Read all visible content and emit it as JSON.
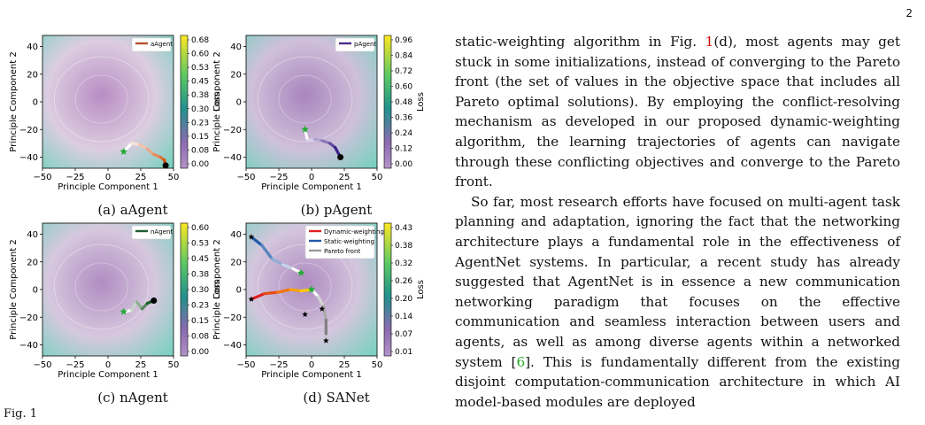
{
  "page_number": "2",
  "figure_label": "Fig. 1",
  "panels": [
    {
      "id": "a",
      "caption": "(a) aAgent",
      "legend": [
        {
          "label": "aAgent",
          "color": "#b5542a"
        }
      ],
      "cbar_ticks": [
        "0.68",
        "0.60",
        "0.53",
        "0.45",
        "0.38",
        "0.30",
        "0.23",
        "0.15",
        "0.08",
        "0.00"
      ],
      "cbar_label": "Loss",
      "base": "#dccde0",
      "tint": "#b98dc4",
      "paths": [
        {
          "pts": [
            [
              12,
              -36
            ],
            [
              18,
              -30
            ],
            [
              24,
              -31
            ],
            [
              30,
              -34
            ],
            [
              35,
              -38
            ],
            [
              40,
              -40
            ],
            [
              43,
              -42
            ],
            [
              44,
              -46
            ]
          ],
          "c1": "#ffffff",
          "c2": "#d6520a"
        }
      ],
      "stars": [
        [
          12,
          -36
        ]
      ],
      "dots": [
        [
          44,
          -46
        ]
      ]
    },
    {
      "id": "b",
      "caption": "(b) pAgent",
      "legend": [
        {
          "label": "pAgent",
          "color": "#4a2d8c"
        }
      ],
      "cbar_ticks": [
        "0.96",
        "0.84",
        "0.72",
        "0.60",
        "0.48",
        "0.36",
        "0.24",
        "0.12",
        "0.00"
      ],
      "cbar_label": "Loss",
      "base": "#cfc0da",
      "tint": "#a985bd",
      "paths": [
        {
          "pts": [
            [
              -5,
              -20
            ],
            [
              -3,
              -28
            ],
            [
              2,
              -27
            ],
            [
              8,
              -28
            ],
            [
              14,
              -30
            ],
            [
              18,
              -33
            ],
            [
              22,
              -40
            ]
          ],
          "c1": "#ffffff",
          "c2": "#3a1f8a"
        }
      ],
      "stars": [
        [
          -5,
          -20
        ]
      ],
      "dots": [
        [
          22,
          -40
        ]
      ]
    },
    {
      "id": "c",
      "caption": "(c) nAgent",
      "legend": [
        {
          "label": "nAgent",
          "color": "#1e5c30"
        }
      ],
      "cbar_ticks": [
        "0.60",
        "0.53",
        "0.45",
        "0.38",
        "0.30",
        "0.23",
        "0.15",
        "0.08",
        "0.00"
      ],
      "cbar_label": "Loss",
      "base": "#d6c8de",
      "tint": "#b18cc2",
      "paths": [
        {
          "pts": [
            [
              12,
              -16
            ],
            [
              18,
              -15
            ],
            [
              22,
              -9
            ],
            [
              26,
              -14
            ],
            [
              30,
              -10
            ],
            [
              35,
              -8
            ]
          ],
          "c1": "#ffffff",
          "c2": "#1b5e2a"
        }
      ],
      "stars": [
        [
          12,
          -16
        ]
      ],
      "dots": [
        [
          35,
          -8
        ]
      ]
    },
    {
      "id": "d",
      "caption": "(d) SANet",
      "legend": [
        {
          "label": "Dynamic-weighting",
          "color": "#e02020"
        },
        {
          "label": "Static-weighting",
          "color": "#1f5aa8"
        },
        {
          "label": "Pareto front",
          "color": "#999999"
        }
      ],
      "cbar_ticks": [
        "0.43",
        "0.38",
        "0.32",
        "0.26",
        "0.20",
        "0.14",
        "0.07",
        "0.01"
      ],
      "cbar_label": "Loss",
      "base": "#d4c6dd",
      "tint": "#ae8ac0",
      "paths": [
        {
          "pts": [
            [
              -46,
              38
            ],
            [
              -38,
              32
            ],
            [
              -30,
              22
            ],
            [
              -22,
              18
            ],
            [
              -14,
              15
            ],
            [
              -8,
              12
            ]
          ],
          "c1": "#1f5aa8",
          "c2": "#ffffff"
        },
        {
          "pts": [
            [
              -46,
              -7
            ],
            [
              -36,
              -3
            ],
            [
              -26,
              -2
            ],
            [
              -16,
              0
            ],
            [
              -8,
              -1
            ],
            [
              0,
              0
            ]
          ],
          "c1": "#e02020",
          "c2": "#ffcc00"
        },
        {
          "pts": [
            [
              0,
              0
            ],
            [
              5,
              -5
            ],
            [
              9,
              -12
            ],
            [
              11,
              -22
            ],
            [
              11,
              -32
            ]
          ],
          "c1": "#ffffff",
          "c2": "#808080"
        }
      ],
      "stars": [
        [
          -8,
          12
        ],
        [
          0,
          0
        ]
      ],
      "black_stars": [
        [
          -46,
          38
        ],
        [
          -46,
          -7
        ],
        [
          -5,
          -18
        ],
        [
          8,
          -14
        ],
        [
          11,
          -37
        ]
      ],
      "dots": []
    }
  ],
  "axes": {
    "xlabel": "Principle Component 1",
    "ylabel": "Principle Component 2",
    "xticks": [
      "−50",
      "−25",
      "0",
      "25",
      "50"
    ],
    "yticks": [
      "40",
      "20",
      "0",
      "−20",
      "−40"
    ]
  },
  "text": {
    "p1": "static-weighting algorithm in Fig. ",
    "p1_ref": "1",
    "p1_rest": "(d), most agents may get stuck in some initializations, instead of converging to the Pareto front (the set of values in the objective space that includes all Pareto optimal solutions). By employing the conflict-resolving mechanism as developed in our proposed dynamic-weighting algorithm, the learning trajectories of agents can navigate through these conflicting objectives and converge to the Pareto front.",
    "p2": "So far, most research efforts have focused on multi-agent task planning and adaptation, ignoring the fact that the networking architecture plays a fundamental role in the effectiveness of AgentNet systems. In particular, a recent study has already suggested that AgentNet is in essence a new communication networking paradigm that focuses on the effective communication and seamless interaction between users and agents, as well as among diverse agents within a networked system [",
    "p2_cite": "6",
    "p2_rest": "]. This is fundamentally different from the existing disjoint computation-communication architecture in which AI model-based modules are deployed"
  }
}
